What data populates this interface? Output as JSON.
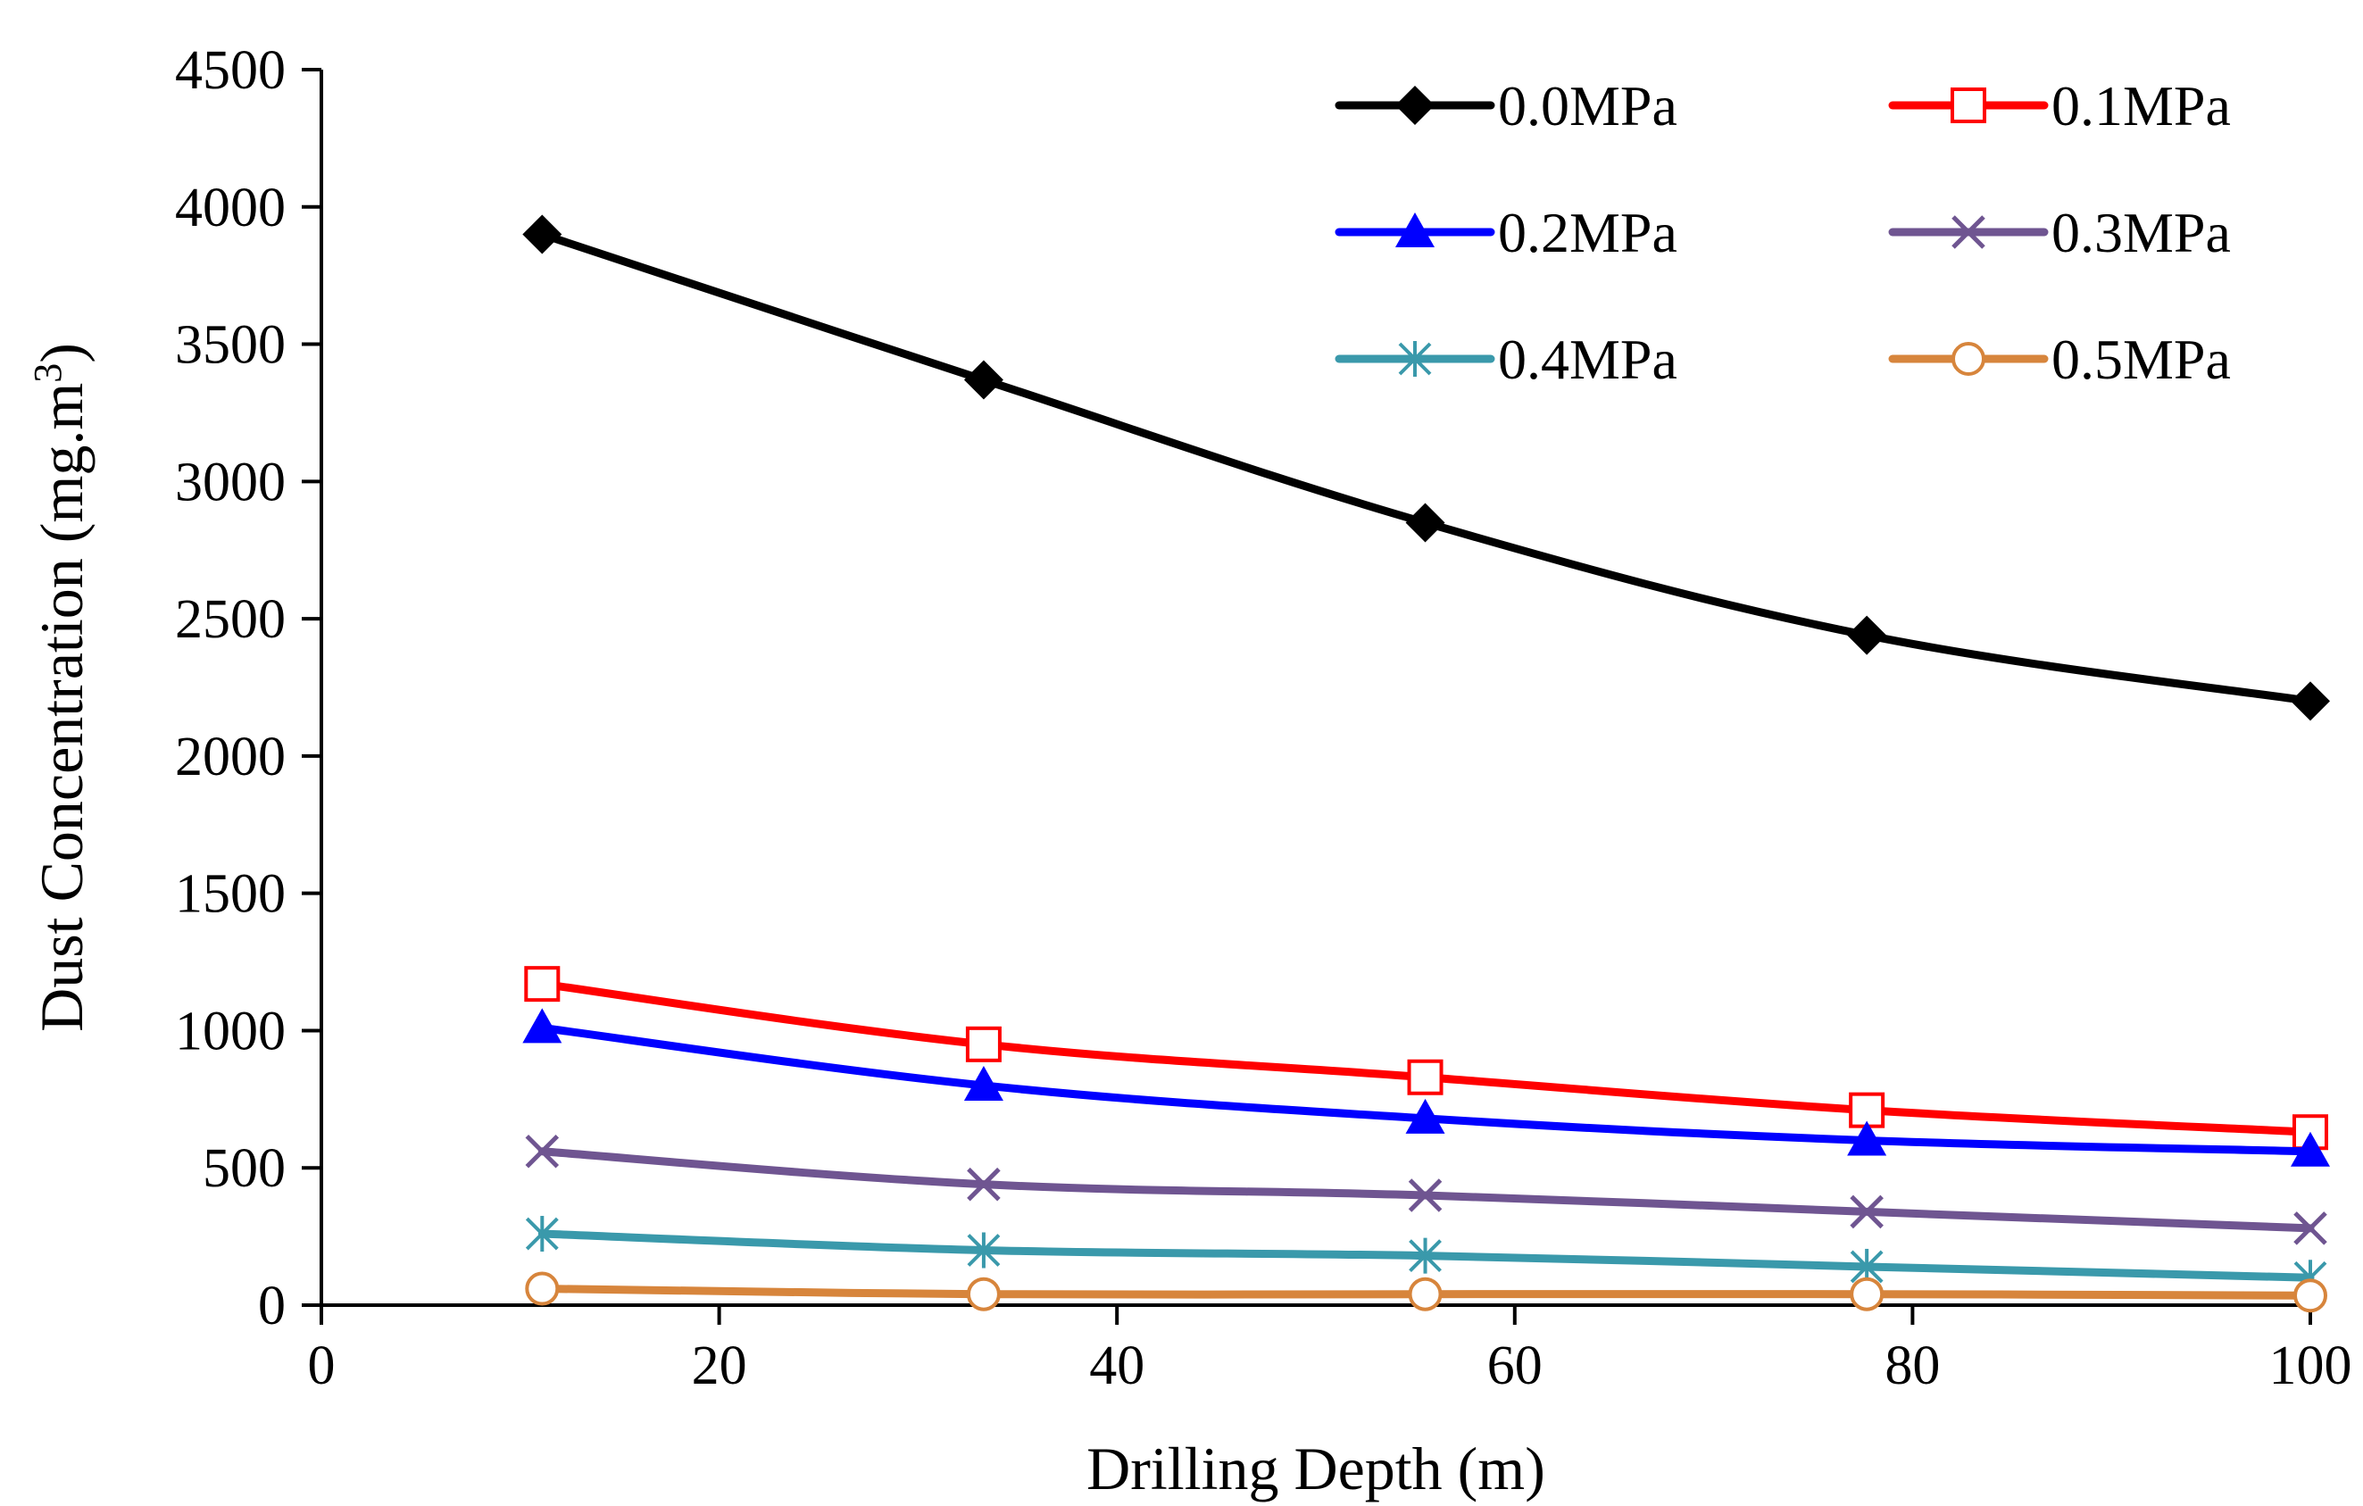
{
  "chart_data": {
    "type": "line",
    "title": "",
    "xlabel": "Drilling Depth (m)",
    "ylabel": "Dust Concentration (mg.m",
    "ylabel_superscript": "3",
    "ylabel_suffix": ")",
    "xlim": [
      0,
      100
    ],
    "ylim": [
      0,
      4500
    ],
    "xticks": [
      0,
      20,
      40,
      60,
      80,
      100
    ],
    "yticks": [
      0,
      500,
      1000,
      1500,
      2000,
      2500,
      3000,
      3500,
      4000,
      4500
    ],
    "grid": false,
    "legend_position": "top-right",
    "x": [
      11.1,
      33.3,
      55.5,
      77.7,
      100
    ],
    "series": [
      {
        "name": "0.0MPa",
        "color": "#000000",
        "marker": "diamond",
        "values": [
          3900,
          3370,
          2850,
          2440,
          2200
        ]
      },
      {
        "name": "0.1MPa",
        "color": "#ff0000",
        "marker": "square-open",
        "values": [
          1170,
          950,
          830,
          710,
          630
        ]
      },
      {
        "name": "0.2MPa",
        "color": "#0000ff",
        "marker": "triangle",
        "values": [
          1010,
          800,
          680,
          600,
          560
        ]
      },
      {
        "name": "0.3MPa",
        "color": "#6f5591",
        "marker": "x",
        "values": [
          560,
          440,
          400,
          340,
          280
        ]
      },
      {
        "name": "0.4MPa",
        "color": "#3a99ab",
        "marker": "asterisk",
        "values": [
          260,
          200,
          180,
          140,
          100
        ]
      },
      {
        "name": "0.5MPa",
        "color": "#d7853c",
        "marker": "circle-open",
        "values": [
          60,
          40,
          40,
          40,
          35
        ]
      }
    ]
  }
}
